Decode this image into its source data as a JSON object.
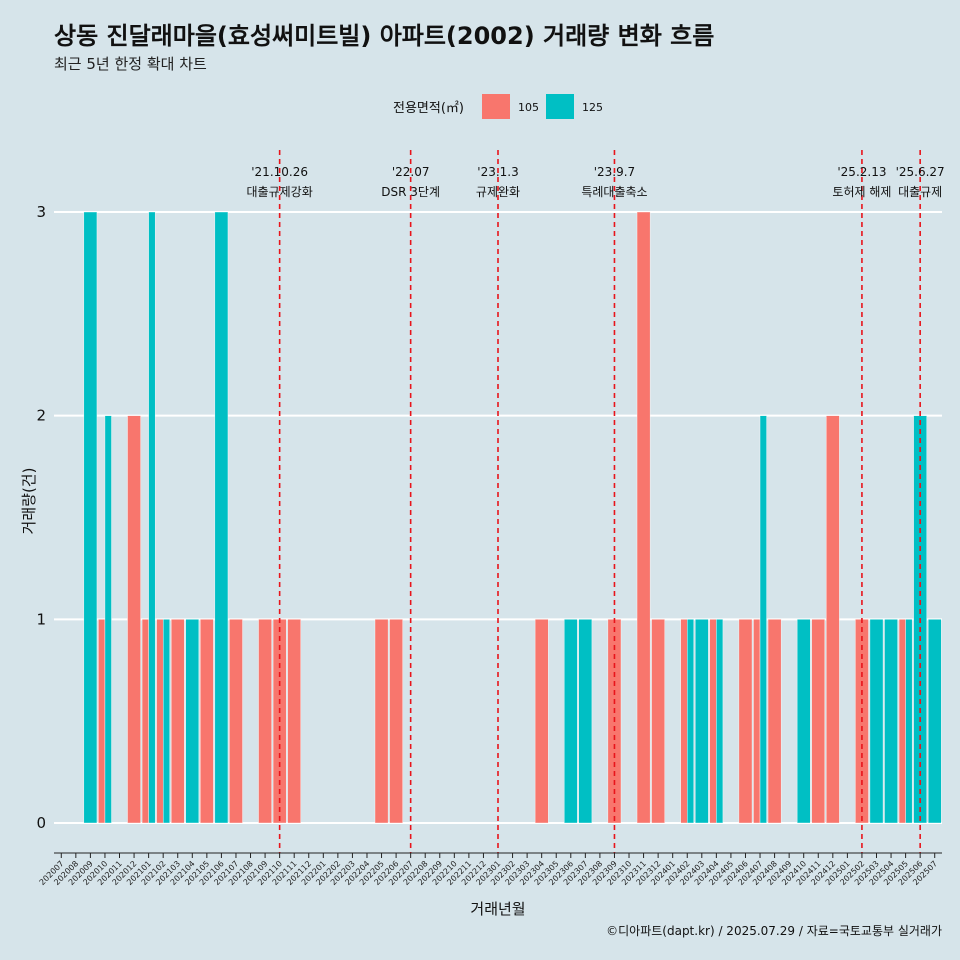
{
  "chart_data": {
    "type": "bar",
    "title": "상동 진달래마을(효성써미트빌) 아파트(2002) 거래량 변화 흐름",
    "subtitle": "최근 5년 한정 확대 차트",
    "xlabel": "거래년월",
    "ylabel": "거래량(건)",
    "ylim": [
      0,
      3
    ],
    "yticks": [
      0,
      1,
      2,
      3
    ],
    "legend": {
      "title": "전용면적(㎡)",
      "position": "top",
      "entries": [
        "105",
        "125"
      ]
    },
    "colors": {
      "105": "#f8766d",
      "125": "#00bfc4",
      "event_line": "#e8141b"
    },
    "caption": "©디아파트(dapt.kr) / 2025.07.29 / 자료=국토교통부 실거래가",
    "categories": [
      "202007",
      "202008",
      "202009",
      "202010",
      "202011",
      "202012",
      "202101",
      "202102",
      "202103",
      "202104",
      "202105",
      "202106",
      "202107",
      "202108",
      "202109",
      "202110",
      "202111",
      "202112",
      "202201",
      "202202",
      "202203",
      "202204",
      "202205",
      "202206",
      "202207",
      "202208",
      "202209",
      "202210",
      "202211",
      "202212",
      "202301",
      "202302",
      "202303",
      "202304",
      "202305",
      "202306",
      "202307",
      "202308",
      "202309",
      "202310",
      "202311",
      "202312",
      "202401",
      "202402",
      "202403",
      "202404",
      "202405",
      "202406",
      "202407",
      "202408",
      "202409",
      "202410",
      "202411",
      "202412",
      "202501",
      "202502",
      "202503",
      "202504",
      "202505",
      "202506",
      "202507"
    ],
    "series": [
      {
        "name": "105",
        "values": [
          0,
          0,
          0,
          1,
          0,
          2,
          1,
          1,
          1,
          0,
          1,
          0,
          1,
          0,
          1,
          1,
          1,
          0,
          0,
          0,
          0,
          0,
          1,
          1,
          0,
          0,
          0,
          0,
          0,
          0,
          0,
          0,
          0,
          1,
          0,
          0,
          0,
          0,
          1,
          0,
          3,
          1,
          0,
          1,
          0,
          1,
          0,
          1,
          1,
          1,
          0,
          0,
          1,
          2,
          0,
          1,
          0,
          0,
          1,
          0,
          0
        ]
      },
      {
        "name": "125",
        "values": [
          0,
          0,
          3,
          2,
          0,
          0,
          3,
          1,
          0,
          1,
          0,
          3,
          0,
          0,
          0,
          0,
          0,
          0,
          0,
          0,
          0,
          0,
          0,
          0,
          0,
          0,
          0,
          0,
          0,
          0,
          0,
          0,
          0,
          0,
          0,
          1,
          1,
          0,
          0,
          0,
          0,
          0,
          0,
          1,
          1,
          1,
          0,
          0,
          2,
          0,
          0,
          1,
          0,
          0,
          0,
          0,
          1,
          1,
          1,
          2,
          1
        ]
      }
    ],
    "events": [
      {
        "date": "'21.10.26",
        "label": "대출규제강화",
        "at": "202110"
      },
      {
        "date": "'22.07",
        "label": "DSR 3단계",
        "at": "202207"
      },
      {
        "date": "'23.1.3",
        "label": "규제완화",
        "at": "202301"
      },
      {
        "date": "'23.9.7",
        "label": "특례대출축소",
        "at": "202309"
      },
      {
        "date": "'25.2.13",
        "label": "토허제 해제",
        "at": "202502"
      },
      {
        "date": "'25.6.27",
        "label": "대출규제",
        "at": "202506"
      }
    ]
  }
}
